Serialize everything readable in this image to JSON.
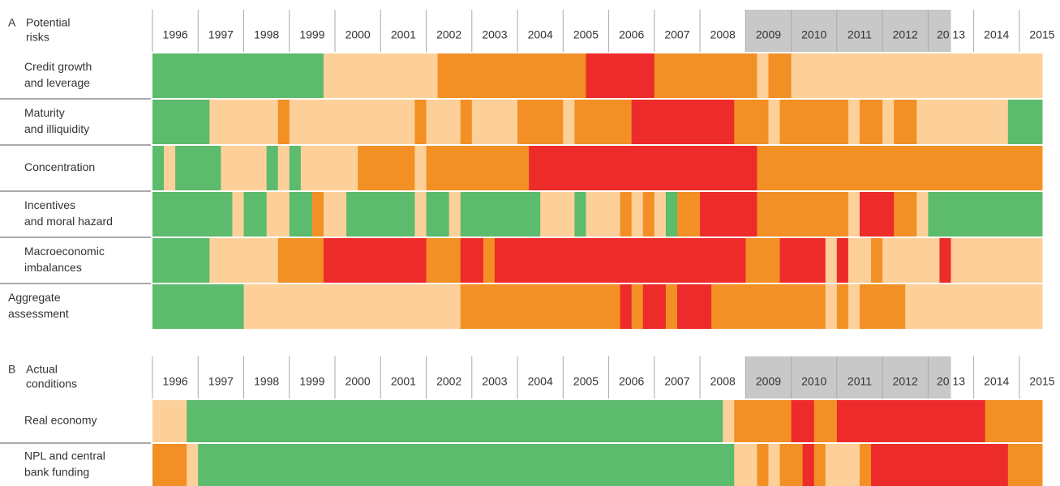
{
  "chart_data": {
    "type": "heatmap",
    "years": [
      "1996",
      "1997",
      "1998",
      "1999",
      "2000",
      "2001",
      "2002",
      "2003",
      "2004",
      "2005",
      "2006",
      "2007",
      "2008",
      "2009",
      "2010",
      "2011",
      "2012",
      "20 13",
      "2014",
      "2015"
    ],
    "xlim": [
      1996,
      2015.5
    ],
    "shaded": [
      2009,
      2013.5
    ],
    "colors": [
      "#5cbb6c",
      "#fdd09a",
      "#f29025",
      "#ec2b2a"
    ],
    "panels": [
      {
        "letter": "A",
        "title": [
          "Potential",
          "risks"
        ],
        "rows": [
          {
            "label": [
              "Credit growth",
              "and leverage"
            ],
            "levels": [
              0,
              1,
              2,
              3,
              2,
              1,
              2,
              1
            ],
            "ends": [
              1999.75,
              2002.25,
              2005.5,
              2007,
              2009.25,
              2009.5,
              2010,
              2015.5
            ]
          },
          {
            "label": [
              "Maturity",
              "and illiquidity"
            ],
            "levels": [
              0,
              1,
              2,
              1,
              2,
              1,
              2,
              1,
              2,
              1,
              2,
              3,
              2,
              1,
              2,
              1,
              2,
              1,
              2,
              1,
              0
            ],
            "ends": [
              1997.25,
              1998.75,
              1999,
              2001.75,
              2002,
              2002.75,
              2003,
              2004,
              2005,
              2005.25,
              2006.5,
              2008.75,
              2009.5,
              2009.75,
              2011.25,
              2011.5,
              2012,
              2012.25,
              2012.75,
              2014.75,
              2015.5
            ]
          },
          {
            "label": [
              "Concentration"
            ],
            "levels": [
              0,
              1,
              0,
              1,
              0,
              1,
              0,
              1,
              2,
              1,
              2,
              3,
              2
            ],
            "ends": [
              1996.25,
              1996.5,
              1997.5,
              1998.5,
              1998.75,
              1999,
              1999.25,
              2000.5,
              2001.75,
              2002,
              2004.25,
              2009.25,
              2015.5
            ]
          },
          {
            "label": [
              "Incentives",
              "and moral hazard"
            ],
            "levels": [
              0,
              1,
              0,
              1,
              0,
              2,
              1,
              0,
              1,
              0,
              1,
              0,
              1,
              0,
              1,
              2,
              1,
              2,
              1,
              0,
              2,
              3,
              2,
              1,
              3,
              2,
              1,
              0
            ],
            "ends": [
              1997.75,
              1998,
              1998.5,
              1999,
              1999.5,
              1999.75,
              2000.25,
              2001.75,
              2002,
              2002.5,
              2002.75,
              2004.5,
              2005.25,
              2005.5,
              2006.25,
              2006.5,
              2006.75,
              2007,
              2007.25,
              2007.5,
              2008,
              2009.25,
              2011.25,
              2011.5,
              2012.25,
              2012.75,
              2013,
              2015.5
            ]
          },
          {
            "label": [
              "Macroeconomic",
              "imbalances"
            ],
            "levels": [
              0,
              1,
              2,
              3,
              2,
              3,
              2,
              3,
              2,
              3,
              1,
              3,
              1,
              2,
              1,
              3,
              1
            ],
            "ends": [
              1997.25,
              1998.75,
              1999.75,
              2002,
              2002.75,
              2003.25,
              2003.5,
              2009,
              2009.75,
              2010.75,
              2011,
              2011.25,
              2011.75,
              2012,
              2013.25,
              2013.5,
              2015.5
            ]
          },
          {
            "label": [
              "Aggregate",
              "assessment"
            ],
            "levels": [
              0,
              1,
              2,
              3,
              2,
              3,
              2,
              3,
              2,
              1,
              2,
              1,
              2,
              1
            ],
            "ends": [
              1998,
              2002.75,
              2006.25,
              2006.5,
              2006.75,
              2007.25,
              2007.5,
              2008.25,
              2010.75,
              2011,
              2011.25,
              2011.5,
              2012.5,
              2015.5
            ]
          }
        ]
      },
      {
        "letter": "B",
        "title": [
          "Actual",
          "conditions"
        ],
        "rows": [
          {
            "label": [
              "Real economy"
            ],
            "levels": [
              1,
              0,
              1,
              2,
              3,
              2,
              3,
              2
            ],
            "ends": [
              1996.75,
              2008.5,
              2008.75,
              2010,
              2010.5,
              2011,
              2014.25,
              2015.5
            ]
          },
          {
            "label": [
              "NPL and central",
              "bank funding"
            ],
            "levels": [
              2,
              1,
              0,
              1,
              2,
              1,
              2,
              3,
              2,
              1,
              2,
              3,
              2
            ],
            "ends": [
              1996.75,
              1997,
              2008.75,
              2009.25,
              2009.5,
              2009.75,
              2010.25,
              2010.5,
              2010.75,
              2011.5,
              2011.75,
              2014.75,
              2015.5
            ]
          }
        ]
      }
    ]
  }
}
